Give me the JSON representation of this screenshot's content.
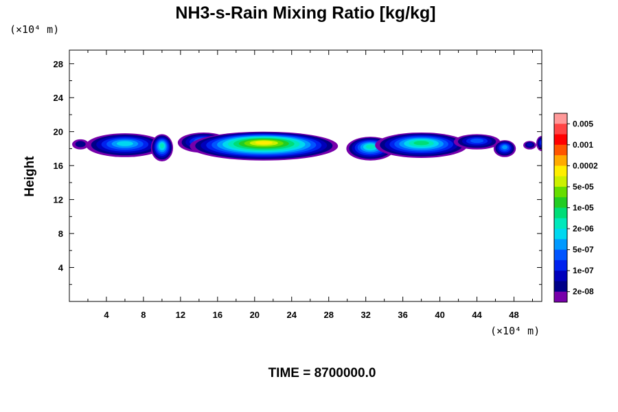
{
  "chart_data": {
    "type": "heatmap",
    "title": "NH3-s-Rain Mixing Ratio [kg/kg]",
    "ylabel": "Height",
    "y_unit": "(×10⁴ m)",
    "x_unit": "(×10⁴ m)",
    "xlim": [
      0,
      51
    ],
    "ylim": [
      0,
      29.6
    ],
    "x_ticks": [
      4,
      8,
      12,
      16,
      20,
      24,
      28,
      32,
      36,
      40,
      44,
      48
    ],
    "y_ticks": [
      4,
      8,
      12,
      16,
      20,
      24,
      28
    ],
    "x_tick_labels": [
      "4",
      "8",
      "12",
      "16",
      "20",
      "24",
      "28",
      "32",
      "36",
      "40",
      "44",
      "48"
    ],
    "y_tick_labels": [
      "4",
      "8",
      "12",
      "16",
      "20",
      "24",
      "28"
    ],
    "time_label": "TIME = 8700000.0",
    "colorbar": {
      "colors": [
        "#ff9999",
        "#ff4444",
        "#ff0000",
        "#ff5500",
        "#ffaa00",
        "#ffee00",
        "#ccf000",
        "#66dd00",
        "#22cc22",
        "#00dd77",
        "#00e8bb",
        "#00d8f0",
        "#0099ff",
        "#0055ff",
        "#0022ee",
        "#0000bb",
        "#000088",
        "#7700aa"
      ],
      "labels": [
        "0.005",
        "0.001",
        "0.0002",
        "5e-05",
        "1e-05",
        "2e-06",
        "5e-07",
        "1e-07",
        "2e-08"
      ]
    },
    "blobs": [
      {
        "x": 1.2,
        "y": 18.5,
        "rx": 0.9,
        "ry": 0.6,
        "level": 1
      },
      {
        "x": 6.0,
        "y": 18.4,
        "rx": 4.2,
        "ry": 1.4,
        "level": 6
      },
      {
        "x": 10.0,
        "y": 18.1,
        "rx": 1.2,
        "ry": 1.6,
        "level": 7
      },
      {
        "x": 14.5,
        "y": 18.7,
        "rx": 2.8,
        "ry": 1.2,
        "level": 5
      },
      {
        "x": 21.0,
        "y": 18.3,
        "rx": 8.0,
        "ry": 1.7,
        "level": 12
      },
      {
        "x": 32.5,
        "y": 18.0,
        "rx": 2.6,
        "ry": 1.4,
        "level": 7
      },
      {
        "x": 38.0,
        "y": 18.4,
        "rx": 5.0,
        "ry": 1.5,
        "level": 8
      },
      {
        "x": 44.0,
        "y": 18.8,
        "rx": 2.5,
        "ry": 0.9,
        "level": 4
      },
      {
        "x": 47.0,
        "y": 18.0,
        "rx": 1.2,
        "ry": 1.0,
        "level": 5
      },
      {
        "x": 49.7,
        "y": 18.4,
        "rx": 0.7,
        "ry": 0.5,
        "level": 2
      },
      {
        "x": 51.0,
        "y": 18.6,
        "rx": 0.6,
        "ry": 0.9,
        "level": 3
      }
    ]
  }
}
